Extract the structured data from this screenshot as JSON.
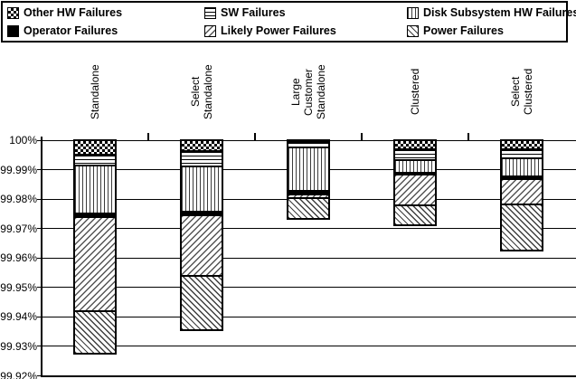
{
  "chart_data": {
    "type": "bar",
    "subtype": "stacked-column-hanging-from-100%",
    "title": "",
    "description": "System availability breakdown: stacked downtime contributions hanging down from 100% for five system configurations",
    "legend": {
      "position": "top",
      "columns": 3,
      "border": true
    },
    "y_axis": {
      "unit": "%",
      "max": 100,
      "min": 99.92,
      "tick_step": 0.01,
      "tick_labels": [
        "100%",
        "99.99%",
        "99.98%",
        "99.97%",
        "99.96%",
        "99.95%",
        "99.94%",
        "99.93%",
        "99.92%"
      ],
      "gridlines": true
    },
    "categories": [
      {
        "label": "Standalone",
        "lines": [
          "Standalone"
        ]
      },
      {
        "label": "Select Standalone",
        "lines": [
          "Select",
          "Standalone"
        ]
      },
      {
        "label": "Large Customer Standalone",
        "lines": [
          "Large",
          "Customer",
          "Standalone"
        ]
      },
      {
        "label": "Clustered",
        "lines": [
          "Clustered"
        ]
      },
      {
        "label": "Select Clustered",
        "lines": [
          "Select",
          "Clustered"
        ]
      }
    ],
    "series_note": "values are downtime in percentage points, stacked from 100% downward in listed order (top of bar to bottom)",
    "series": [
      {
        "name": "Other HW Failures",
        "pattern": "checker",
        "values": [
          0.0049,
          0.0038,
          0.0007,
          0.0031,
          0.0031
        ]
      },
      {
        "name": "SW Failures",
        "pattern": "hlines",
        "values": [
          0.0036,
          0.0051,
          0.0018,
          0.0037,
          0.0031
        ]
      },
      {
        "name": "Disk Subsystem HW Failures",
        "pattern": "vlines",
        "values": [
          0.0163,
          0.0154,
          0.0147,
          0.0043,
          0.0061
        ]
      },
      {
        "name": "Operator Failures",
        "pattern": "solid",
        "values": [
          0.0014,
          0.0013,
          0.0013,
          0.0006,
          0.001
        ]
      },
      {
        "name": "Likely Power Failures",
        "pattern": "diag-up",
        "values": [
          0.0318,
          0.0204,
          0.0012,
          0.0104,
          0.0086
        ]
      },
      {
        "name": "Power Failures",
        "pattern": "diag-down",
        "values": [
          0.0145,
          0.0184,
          0.0069,
          0.0067,
          0.0156
        ]
      }
    ],
    "bar_bottom_pct": [
      99.9275,
      99.9356,
      99.9734,
      99.9712,
      99.9625
    ],
    "colors": {
      "foreground": "#000000",
      "background": "#ffffff"
    }
  }
}
